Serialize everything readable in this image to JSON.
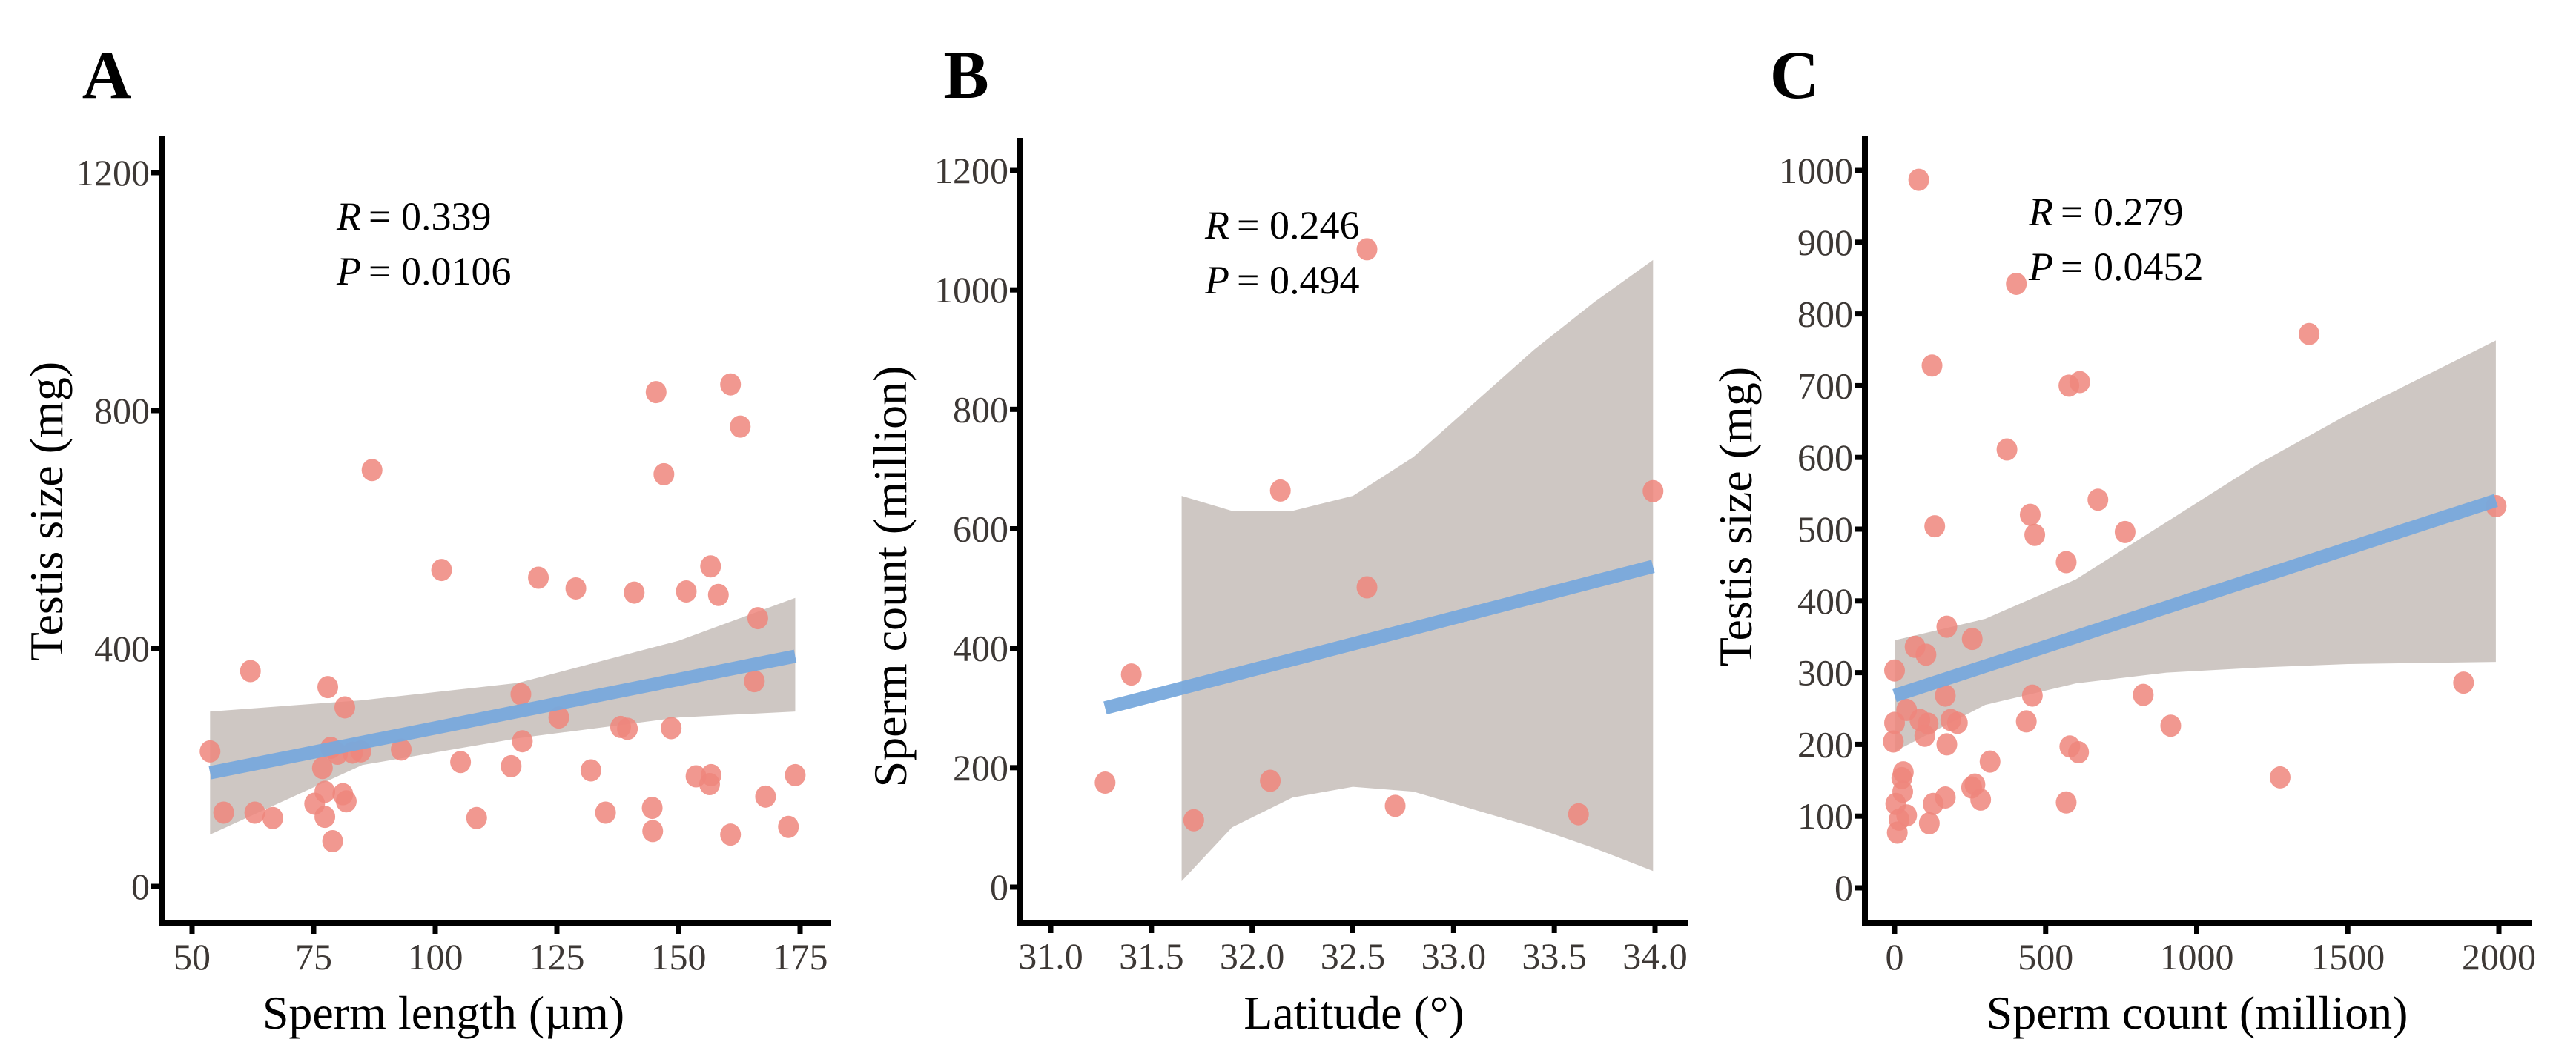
{
  "chart_data": [
    {
      "type": "scatter",
      "panel": "A",
      "xlabel": "Sperm length (µm)",
      "ylabel": "Testis size (mg)",
      "xlim": [
        45,
        180
      ],
      "ylim": [
        -50,
        1300
      ],
      "xticks": [
        50,
        75,
        100,
        125,
        150,
        175
      ],
      "yticks": [
        0,
        400,
        800,
        1200
      ],
      "stats": {
        "r_label": "R",
        "r_value": "= 0.339",
        "p_label": "P",
        "p_value": "= 0.0106"
      },
      "points": [
        [
          87,
          700
        ],
        [
          147,
          693
        ],
        [
          101.3,
          532
        ],
        [
          121.2,
          519
        ],
        [
          128.9,
          501
        ],
        [
          140.9,
          494
        ],
        [
          151.6,
          496
        ],
        [
          156.6,
          538
        ],
        [
          158.2,
          490
        ],
        [
          166.3,
          451
        ],
        [
          62,
          362
        ],
        [
          77.9,
          335
        ],
        [
          81.4,
          301
        ],
        [
          117.6,
          323
        ],
        [
          125.4,
          284
        ],
        [
          138.1,
          268
        ],
        [
          139.5,
          265
        ],
        [
          148.5,
          266
        ],
        [
          165.6,
          345
        ],
        [
          53.7,
          227
        ],
        [
          78.5,
          233
        ],
        [
          79.9,
          223
        ],
        [
          83,
          225
        ],
        [
          84.7,
          227
        ],
        [
          93,
          230
        ],
        [
          76.8,
          199
        ],
        [
          105.2,
          209
        ],
        [
          115.6,
          202
        ],
        [
          117.9,
          244
        ],
        [
          132,
          195
        ],
        [
          153.6,
          185
        ],
        [
          156.7,
          187
        ],
        [
          156.4,
          172
        ],
        [
          174,
          187
        ],
        [
          77.3,
          159
        ],
        [
          81,
          155
        ],
        [
          81.7,
          143
        ],
        [
          75.2,
          139
        ],
        [
          56.5,
          124
        ],
        [
          62.9,
          124
        ],
        [
          66.6,
          115
        ],
        [
          77.3,
          117
        ],
        [
          108.5,
          115
        ],
        [
          135,
          124
        ],
        [
          144.6,
          132
        ],
        [
          167.9,
          151
        ],
        [
          78.9,
          76
        ],
        [
          144.7,
          93
        ],
        [
          160.7,
          87
        ],
        [
          172.6,
          100
        ],
        [
          145.4,
          831
        ],
        [
          160.7,
          844
        ],
        [
          162.7,
          773
        ]
      ],
      "fit": {
        "x": [
          53.7,
          174
        ],
        "y": [
          191,
          387
        ]
      },
      "ci": {
        "x": [
          53.7,
          85,
          117,
          150,
          174
        ],
        "lower": [
          87,
          204,
          249,
          284,
          294
        ],
        "upper": [
          294,
          313,
          342,
          413,
          485
        ]
      }
    },
    {
      "type": "scatter",
      "panel": "B",
      "xlabel": "Latitude (°)",
      "ylabel": "Sperm count (million)",
      "xlim": [
        30.85,
        34.15
      ],
      "ylim": [
        -60,
        1260
      ],
      "xticks": [
        "31.0",
        "31.5",
        "32.0",
        "32.5",
        "33.0",
        "33.5",
        "34.0"
      ],
      "yticks": [
        0,
        200,
        400,
        600,
        800,
        1000,
        1200
      ],
      "stats": {
        "r_label": "R",
        "r_value": "= 0.246",
        "p_label": "P",
        "p_value": "= 0.494"
      },
      "points": [
        [
          31.27,
          175
        ],
        [
          31.4,
          356
        ],
        [
          31.71,
          112
        ],
        [
          32.09,
          178
        ],
        [
          32.14,
          664
        ],
        [
          32.57,
          502
        ],
        [
          32.57,
          1068
        ],
        [
          32.71,
          136
        ],
        [
          33.62,
          122
        ],
        [
          33.99,
          663
        ]
      ],
      "fit": {
        "x": [
          31.27,
          33.99
        ],
        "y": [
          300,
          537
        ]
      },
      "ci": {
        "x": [
          31.65,
          31.9,
          32.2,
          32.5,
          32.8,
          33.1,
          33.4,
          33.7,
          33.99
        ],
        "lower": [
          10,
          100,
          150,
          168,
          160,
          130,
          100,
          65,
          27
        ],
        "upper": [
          655,
          630,
          630,
          655,
          720,
          810,
          900,
          980,
          1050
        ]
      }
    },
    {
      "type": "scatter",
      "panel": "C",
      "xlabel": "Sperm count (million)",
      "ylabel": "Testis size (mg)",
      "xlim": [
        -100,
        2100
      ],
      "ylim": [
        -50,
        1050
      ],
      "xticks": [
        0,
        500,
        1000,
        1500,
        2000
      ],
      "yticks": [
        0,
        100,
        200,
        300,
        400,
        500,
        600,
        700,
        800,
        900,
        1000
      ],
      "stats": {
        "r_label": "R",
        "r_value": "= 0.279",
        "p_label": "P",
        "p_value": "= 0.0452"
      },
      "points": [
        [
          80,
          987
        ],
        [
          403,
          842
        ],
        [
          1372,
          772
        ],
        [
          124,
          728
        ],
        [
          577,
          700
        ],
        [
          613,
          705
        ],
        [
          372,
          611
        ],
        [
          673,
          541
        ],
        [
          449,
          520
        ],
        [
          464,
          492
        ],
        [
          763,
          496
        ],
        [
          133,
          504
        ],
        [
          1991,
          532
        ],
        [
          568,
          454
        ],
        [
          173,
          364
        ],
        [
          257,
          347
        ],
        [
          68,
          336
        ],
        [
          104,
          325
        ],
        [
          0,
          303
        ],
        [
          168,
          268
        ],
        [
          456,
          268
        ],
        [
          823,
          269
        ],
        [
          1883,
          286
        ],
        [
          40,
          248
        ],
        [
          0,
          230
        ],
        [
          84,
          234
        ],
        [
          111,
          229
        ],
        [
          186,
          234
        ],
        [
          208,
          230
        ],
        [
          100,
          212
        ],
        [
          436,
          232
        ],
        [
          914,
          226
        ],
        [
          -4,
          204
        ],
        [
          173,
          200
        ],
        [
          580,
          197
        ],
        [
          609,
          189
        ],
        [
          316,
          176
        ],
        [
          29,
          161
        ],
        [
          24,
          153
        ],
        [
          27,
          134
        ],
        [
          1276,
          154
        ],
        [
          266,
          144
        ],
        [
          255,
          140
        ],
        [
          285,
          123
        ],
        [
          168,
          126
        ],
        [
          128,
          117
        ],
        [
          4,
          117
        ],
        [
          568,
          119
        ],
        [
          40,
          101
        ],
        [
          15,
          95
        ],
        [
          115,
          90
        ],
        [
          9,
          77
        ]
      ],
      "fit": {
        "x": [
          0,
          1990
        ],
        "y": [
          268,
          540
        ]
      },
      "ci": {
        "x": [
          0,
          300,
          600,
          900,
          1200,
          1500,
          1990
        ],
        "lower": [
          190,
          255,
          285,
          300,
          307,
          312,
          315
        ],
        "upper": [
          345,
          375,
          430,
          510,
          590,
          660,
          763
        ]
      }
    }
  ],
  "colors": {
    "point": "#ef867c",
    "fit": "#78a9dc",
    "band": "#c9c1bc",
    "axis": "#000000"
  }
}
